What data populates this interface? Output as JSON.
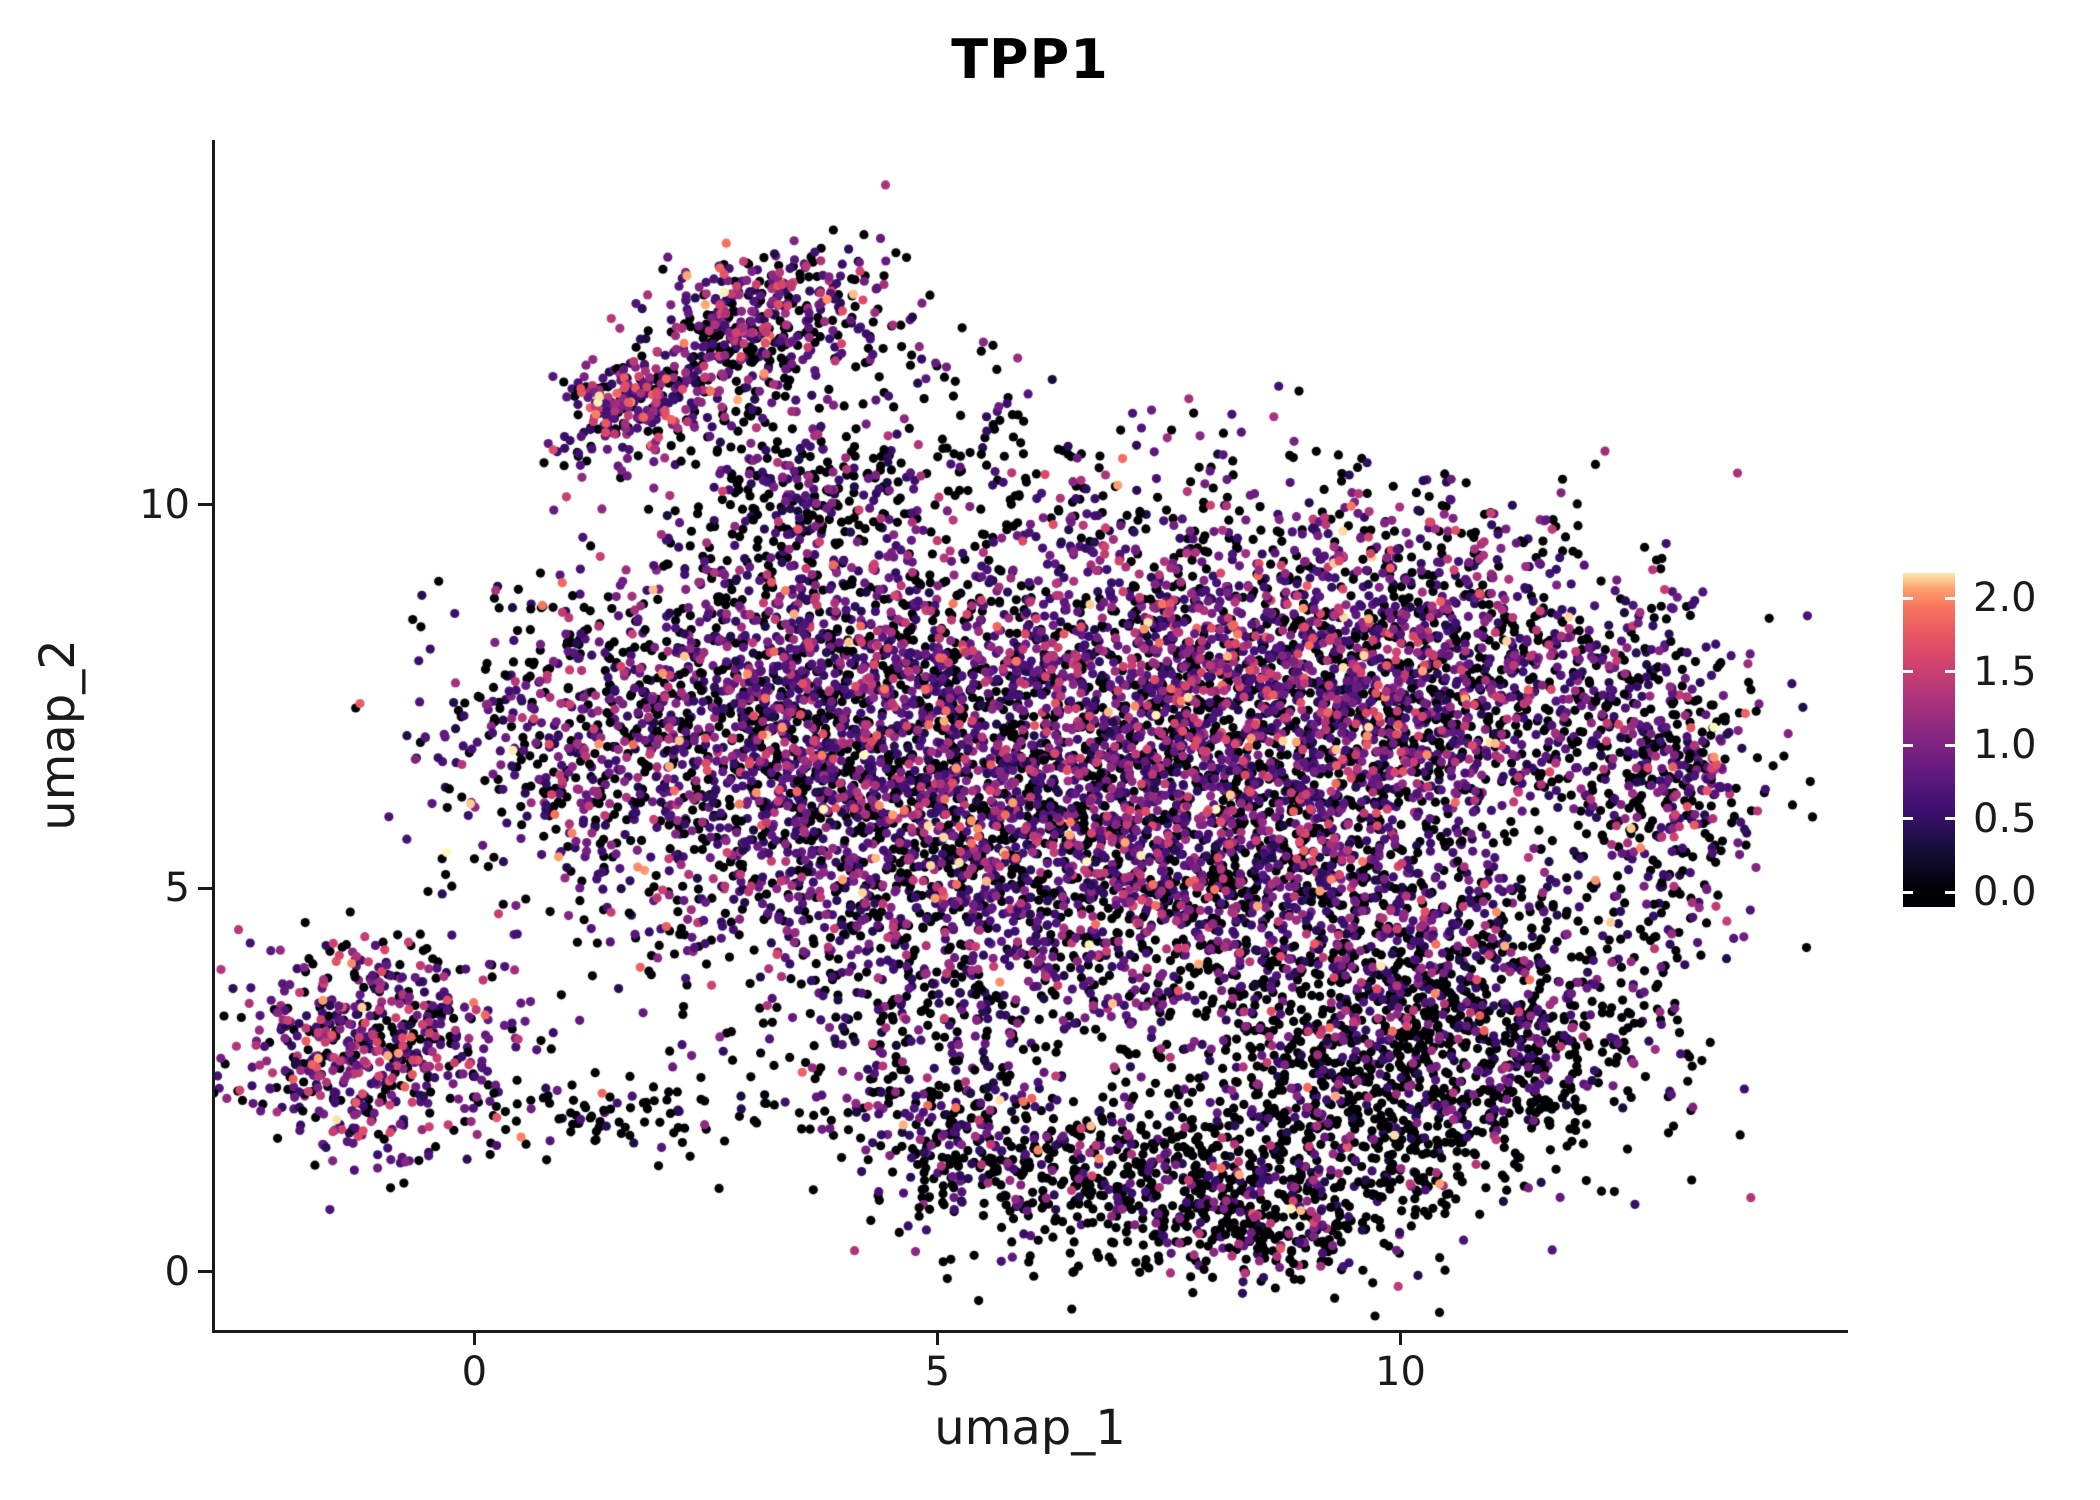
{
  "chart_data": {
    "type": "scatter",
    "title": "TPP1",
    "xlabel": "umap_1",
    "ylabel": "umap_2",
    "xlim": [
      -2.8,
      14.8
    ],
    "ylim": [
      -0.76,
      14.76
    ],
    "grid": false,
    "x_ticks": [
      {
        "value": 0,
        "label": "0"
      },
      {
        "value": 5,
        "label": "5"
      },
      {
        "value": 10,
        "label": "10"
      }
    ],
    "y_ticks": [
      {
        "value": 0,
        "label": "0"
      },
      {
        "value": 5,
        "label": "5"
      },
      {
        "value": 10,
        "label": "10"
      }
    ],
    "point_radius": 4.6,
    "seed": 42,
    "colormap": {
      "name": "magma",
      "domain": [
        0,
        2.2
      ],
      "stops": [
        [
          0.0,
          "#000004"
        ],
        [
          0.125,
          "#140E36"
        ],
        [
          0.25,
          "#3B0F70"
        ],
        [
          0.375,
          "#641A80"
        ],
        [
          0.5,
          "#8C2981"
        ],
        [
          0.625,
          "#B73779"
        ],
        [
          0.75,
          "#DE4968"
        ],
        [
          0.875,
          "#F7705C"
        ],
        [
          0.9375,
          "#FE9F6D"
        ],
        [
          1.0,
          "#FCFDBF"
        ]
      ]
    },
    "colorbar": {
      "position": "right",
      "value_top": 2.17,
      "value_bottom": -0.1,
      "ticks": [
        {
          "value": 2.0,
          "label": "2.0"
        },
        {
          "value": 1.5,
          "label": "1.5"
        },
        {
          "value": 1.0,
          "label": "1.0"
        },
        {
          "value": 0.5,
          "label": "0.5"
        },
        {
          "value": 0.0,
          "label": "0.0"
        }
      ]
    },
    "clusters": [
      {
        "name": "bottom-left-cluster",
        "cx": -1.1,
        "cy": 2.9,
        "sx": 0.78,
        "sy": 0.68,
        "rot": 0,
        "n": 620,
        "p0": 0.3,
        "emean": 0.9
      },
      {
        "name": "bottom-left-connector",
        "cx": 1.6,
        "cy": 2.05,
        "sx": 1.0,
        "sy": 0.3,
        "rot": 0,
        "n": 90,
        "p0": 0.75,
        "emean": 0.6
      },
      {
        "name": "left-protrusion",
        "cx": 1.0,
        "cy": 6.9,
        "sx": 0.75,
        "sy": 0.9,
        "rot": 0,
        "n": 380,
        "p0": 0.4,
        "emean": 0.8
      },
      {
        "name": "main-left",
        "cx": 3.3,
        "cy": 7.3,
        "sx": 1.2,
        "sy": 1.3,
        "rot": 0,
        "n": 1500,
        "p0": 0.35,
        "emean": 0.85
      },
      {
        "name": "main-center",
        "cx": 6.2,
        "cy": 7.2,
        "sx": 1.6,
        "sy": 1.4,
        "rot": 0,
        "n": 1900,
        "p0": 0.38,
        "emean": 0.85
      },
      {
        "name": "main-right",
        "cx": 9.0,
        "cy": 7.6,
        "sx": 1.4,
        "sy": 1.2,
        "rot": 0,
        "n": 1700,
        "p0": 0.35,
        "emean": 0.9
      },
      {
        "name": "main-center-low",
        "cx": 5.6,
        "cy": 5.2,
        "sx": 1.5,
        "sy": 1.0,
        "rot": 0,
        "n": 1100,
        "p0": 0.4,
        "emean": 0.8
      },
      {
        "name": "main-right-low",
        "cx": 8.6,
        "cy": 5.0,
        "sx": 1.2,
        "sy": 1.1,
        "rot": 0,
        "n": 900,
        "p0": 0.4,
        "emean": 0.85
      },
      {
        "name": "right-lobe-top",
        "cx": 11.3,
        "cy": 7.6,
        "sx": 1.1,
        "sy": 0.9,
        "rot": 0,
        "n": 650,
        "p0": 0.45,
        "emean": 0.8
      },
      {
        "name": "right-edge",
        "cx": 12.7,
        "cy": 5.8,
        "sx": 0.45,
        "sy": 1.3,
        "rot": 0,
        "n": 280,
        "p0": 0.5,
        "emean": 0.8
      },
      {
        "name": "right-lower-arc",
        "cx": 10.6,
        "cy": 4.0,
        "sx": 0.8,
        "sy": 0.7,
        "rot": 0,
        "n": 350,
        "p0": 0.55,
        "emean": 0.8
      },
      {
        "name": "far-right-tip",
        "cx": 13.3,
        "cy": 6.4,
        "sx": 0.35,
        "sy": 0.8,
        "rot": 0,
        "n": 120,
        "p0": 0.5,
        "emean": 0.9
      },
      {
        "name": "bottom-right-dense",
        "cx": 9.9,
        "cy": 2.6,
        "sx": 1.0,
        "sy": 0.9,
        "rot": 0,
        "n": 820,
        "p0": 0.7,
        "emean": 0.75
      },
      {
        "name": "bottom-right-corner",
        "cx": 11.8,
        "cy": 3.0,
        "sx": 0.7,
        "sy": 0.7,
        "rot": 0,
        "n": 200,
        "p0": 0.68,
        "emean": 0.7
      },
      {
        "name": "bottom-band",
        "cx": 7.6,
        "cy": 1.3,
        "sx": 1.5,
        "sy": 0.6,
        "rot": 0,
        "n": 700,
        "p0": 0.7,
        "emean": 0.8
      },
      {
        "name": "bottom-tip",
        "cx": 8.6,
        "cy": 0.55,
        "sx": 0.7,
        "sy": 0.3,
        "rot": 0,
        "n": 170,
        "p0": 0.65,
        "emean": 0.9
      },
      {
        "name": "bottom-arc-left",
        "cx": 5.2,
        "cy": 1.9,
        "sx": 0.9,
        "sy": 0.55,
        "rot": -20,
        "n": 300,
        "p0": 0.6,
        "emean": 0.75
      },
      {
        "name": "mid-gap-sparse",
        "cx": 5.2,
        "cy": 3.4,
        "sx": 1.5,
        "sy": 0.5,
        "rot": 0,
        "n": 150,
        "p0": 0.55,
        "emean": 0.7
      },
      {
        "name": "upper-arm-base",
        "cx": 3.4,
        "cy": 10.1,
        "sx": 0.7,
        "sy": 0.5,
        "rot": 0,
        "n": 200,
        "p0": 0.5,
        "emean": 0.75
      },
      {
        "name": "upper-arm",
        "cx": 2.8,
        "cy": 12.0,
        "sx": 0.95,
        "sy": 0.45,
        "rot": 35,
        "n": 400,
        "p0": 0.35,
        "emean": 0.9
      },
      {
        "name": "upper-arm-tip",
        "cx": 3.0,
        "cy": 12.7,
        "sx": 0.55,
        "sy": 0.35,
        "rot": 0,
        "n": 150,
        "p0": 0.3,
        "emean": 0.9
      },
      {
        "name": "upper-arm-knot",
        "cx": 1.6,
        "cy": 11.25,
        "sx": 0.38,
        "sy": 0.35,
        "rot": 0,
        "n": 170,
        "p0": 0.28,
        "emean": 0.95
      },
      {
        "name": "upper-scatter",
        "cx": 4.7,
        "cy": 11.3,
        "sx": 0.85,
        "sy": 0.85,
        "rot": 0,
        "n": 90,
        "p0": 0.65,
        "emean": 0.7
      },
      {
        "name": "top-edge-scatter",
        "cx": 6.2,
        "cy": 10.3,
        "sx": 1.3,
        "sy": 0.5,
        "rot": 0,
        "n": 80,
        "p0": 0.6,
        "emean": 0.7
      },
      {
        "name": "right-top-scatter",
        "cx": 10.4,
        "cy": 9.6,
        "sx": 0.9,
        "sy": 0.5,
        "rot": 0,
        "n": 70,
        "p0": 0.55,
        "emean": 0.8
      },
      {
        "name": "left-mid-scatter",
        "cx": 2.3,
        "cy": 4.5,
        "sx": 0.9,
        "sy": 0.45,
        "rot": 0,
        "n": 45,
        "p0": 0.75,
        "emean": 0.6
      }
    ]
  },
  "style": {
    "background": "#FFFFFF",
    "axis_color": "#1A1A1A",
    "text_color": "#1A1A1A",
    "title_color": "#000000"
  }
}
